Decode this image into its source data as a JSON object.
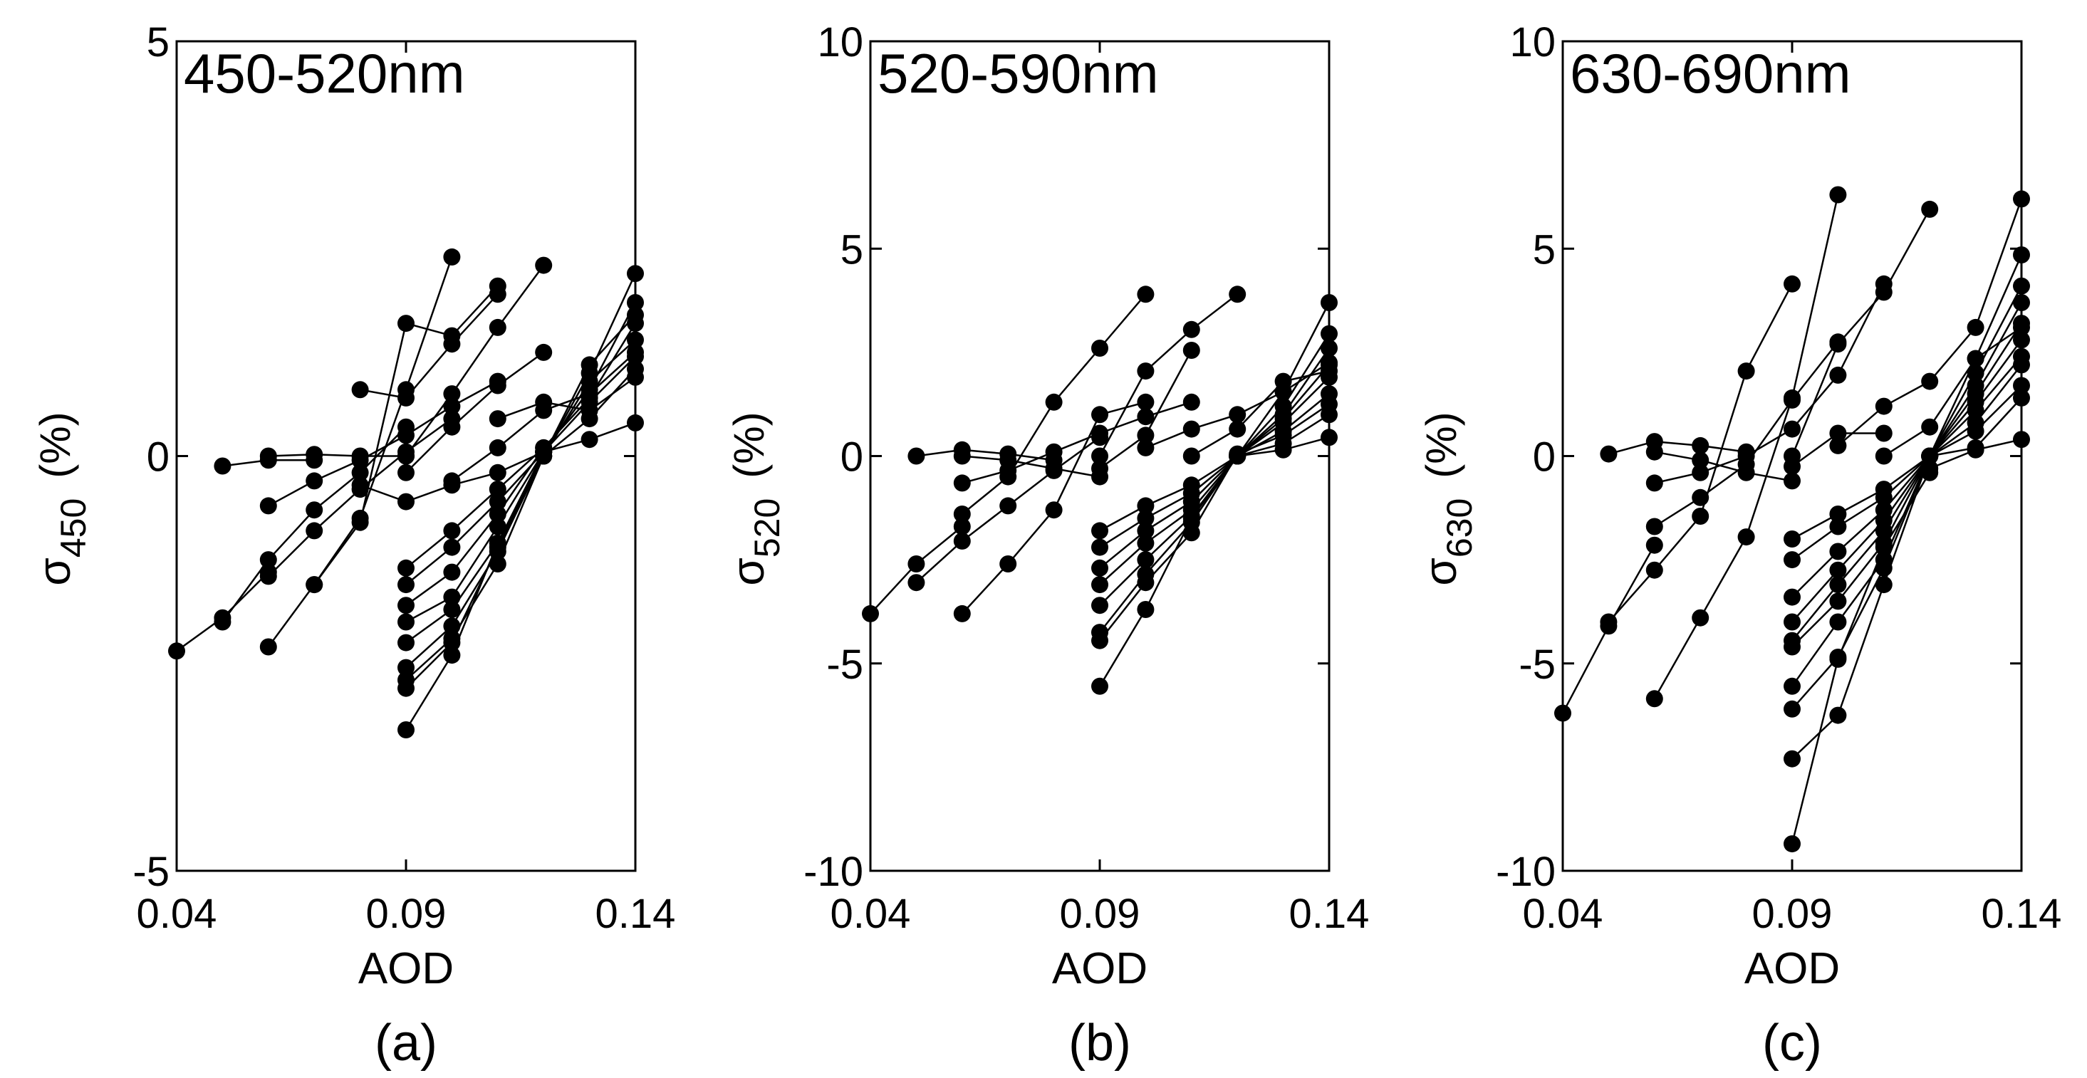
{
  "chart_data": [
    {
      "type": "line",
      "panel_label": "(a)",
      "title": "450-520nm",
      "xlabel": "AOD",
      "ylabel": {
        "symbol": "σ",
        "subscript": "450",
        "unit": "(%)"
      },
      "xlim": [
        0.04,
        0.14
      ],
      "ylim": [
        -5,
        5
      ],
      "xticks": [
        {
          "value": 0.04,
          "label": "0.04"
        },
        {
          "value": 0.09,
          "label": "0.09"
        },
        {
          "value": 0.14,
          "label": "0.14"
        }
      ],
      "yticks": [
        {
          "value": -5,
          "label": "-5"
        },
        {
          "value": 0,
          "label": "0"
        },
        {
          "value": 5,
          "label": "5"
        }
      ],
      "grid": false,
      "series": [
        {
          "x": [
            0.04,
            0.05,
            0.06
          ],
          "y": [
            -2.35,
            -1.95,
            -1.4
          ]
        },
        {
          "x": [
            0.05,
            0.06,
            0.07,
            0.08,
            0.09
          ],
          "y": [
            -2.0,
            -1.25,
            -0.65,
            -0.2,
            0.35
          ]
        },
        {
          "x": [
            0.06,
            0.07,
            0.08,
            0.09,
            0.1
          ],
          "y": [
            -1.45,
            -0.9,
            -0.4,
            0.05,
            0.45
          ]
        },
        {
          "x": [
            0.06,
            0.07,
            0.08,
            0.09,
            0.1,
            0.11
          ],
          "y": [
            -0.6,
            -0.3,
            -0.05,
            0.25,
            0.6,
            0.9
          ]
        },
        {
          "x": [
            0.05,
            0.06,
            0.07
          ],
          "y": [
            -0.12,
            -0.05,
            -0.05
          ]
        },
        {
          "x": [
            0.06,
            0.07,
            0.08,
            0.09
          ],
          "y": [
            0.0,
            0.02,
            0.0,
            0.0
          ]
        },
        {
          "x": [
            0.06,
            0.07,
            0.08,
            0.09,
            0.1
          ],
          "y": [
            -2.3,
            -1.55,
            -0.75,
            0.8,
            2.4
          ]
        },
        {
          "x": [
            0.07,
            0.08,
            0.09,
            0.1,
            0.11
          ],
          "y": [
            -1.55,
            -0.8,
            1.6,
            1.45,
            2.05
          ]
        },
        {
          "x": [
            0.08,
            0.09,
            0.1,
            0.11
          ],
          "y": [
            0.8,
            0.7,
            1.35,
            1.95
          ]
        },
        {
          "x": [
            0.09,
            0.1,
            0.11,
            0.12
          ],
          "y": [
            0.0,
            0.75,
            1.55,
            2.3
          ]
        },
        {
          "x": [
            0.09,
            0.1,
            0.11,
            0.12
          ],
          "y": [
            -0.2,
            0.35,
            0.85,
            1.25
          ]
        },
        {
          "x": [
            0.08,
            0.09,
            0.1,
            0.11,
            0.12
          ],
          "y": [
            -0.35,
            -0.55,
            -0.35,
            -0.2,
            0.05
          ]
        },
        {
          "x": [
            0.09,
            0.1,
            0.11,
            0.12
          ],
          "y": [
            -1.35,
            -0.9,
            -0.4,
            0.1
          ]
        },
        {
          "x": [
            0.09,
            0.1,
            0.11,
            0.12
          ],
          "y": [
            -1.55,
            -1.1,
            -0.55,
            0.05
          ]
        },
        {
          "x": [
            0.09,
            0.1,
            0.11,
            0.12,
            0.13,
            0.14
          ],
          "y": [
            -1.8,
            -1.4,
            -0.7,
            0.1,
            0.7,
            1.6
          ]
        },
        {
          "x": [
            0.09,
            0.1,
            0.11,
            0.12,
            0.13,
            0.14
          ],
          "y": [
            -2.0,
            -1.7,
            -0.85,
            0.05,
            0.8,
            1.85
          ]
        },
        {
          "x": [
            0.09,
            0.1,
            0.11,
            0.12,
            0.13,
            0.14
          ],
          "y": [
            -2.25,
            -1.85,
            -1.05,
            0.0,
            1.0,
            2.2
          ]
        },
        {
          "x": [
            0.09,
            0.1,
            0.11,
            0.12,
            0.13,
            0.14
          ],
          "y": [
            -2.55,
            -2.05,
            -1.15,
            0.0,
            1.1,
            1.7
          ]
        },
        {
          "x": [
            0.09,
            0.1,
            0.11,
            0.12,
            0.13,
            0.14
          ],
          "y": [
            -2.7,
            -2.2,
            -1.3,
            0.0,
            0.9,
            1.4
          ]
        },
        {
          "x": [
            0.09,
            0.1,
            0.11,
            0.12,
            0.13,
            0.14
          ],
          "y": [
            -3.3,
            -2.4,
            -1.05,
            0.05,
            0.65,
            1.2
          ]
        },
        {
          "x": [
            0.09,
            0.1,
            0.11,
            0.12,
            0.13,
            0.14
          ],
          "y": [
            -2.8,
            -2.25,
            -1.1,
            0.0,
            0.45,
            1.05
          ]
        },
        {
          "x": [
            0.1,
            0.11,
            0.12,
            0.13,
            0.14
          ],
          "y": [
            -0.3,
            0.1,
            0.55,
            0.75,
            1.25
          ]
        },
        {
          "x": [
            0.11,
            0.12,
            0.13,
            0.14
          ],
          "y": [
            0.45,
            0.65,
            0.55,
            0.95
          ]
        },
        {
          "x": [
            0.12,
            0.13,
            0.14
          ],
          "y": [
            0.05,
            0.2,
            0.4
          ]
        }
      ]
    },
    {
      "type": "line",
      "panel_label": "(b)",
      "title": "520-590nm",
      "xlabel": "AOD",
      "ylabel": {
        "symbol": "σ",
        "subscript": "520",
        "unit": "(%)"
      },
      "xlim": [
        0.04,
        0.14
      ],
      "ylim": [
        -10,
        10
      ],
      "xticks": [
        {
          "value": 0.04,
          "label": "0.04"
        },
        {
          "value": 0.09,
          "label": "0.09"
        },
        {
          "value": 0.14,
          "label": "0.14"
        }
      ],
      "yticks": [
        {
          "value": -10,
          "label": "-10"
        },
        {
          "value": -5,
          "label": "-5"
        },
        {
          "value": 0,
          "label": "0"
        },
        {
          "value": 5,
          "label": "5"
        },
        {
          "value": 10,
          "label": "10"
        }
      ],
      "grid": false,
      "series": [
        {
          "x": [
            0.04,
            0.05,
            0.06
          ],
          "y": [
            -3.8,
            -2.6,
            -1.7
          ]
        },
        {
          "x": [
            0.05,
            0.06,
            0.07,
            0.08,
            0.09
          ],
          "y": [
            -3.05,
            -2.05,
            -1.2,
            -0.35,
            0.45
          ]
        },
        {
          "x": [
            0.06,
            0.07,
            0.08,
            0.09,
            0.1
          ],
          "y": [
            -3.8,
            -2.6,
            -1.3,
            1.0,
            1.3
          ]
        },
        {
          "x": [
            0.06,
            0.07,
            0.08,
            0.09,
            0.1
          ],
          "y": [
            -1.4,
            -0.5,
            1.3,
            2.6,
            3.9
          ]
        },
        {
          "x": [
            0.06,
            0.07,
            0.08,
            0.09,
            0.1,
            0.11
          ],
          "y": [
            -0.65,
            -0.35,
            0.1,
            0.55,
            0.95,
            1.3
          ]
        },
        {
          "x": [
            0.05,
            0.06,
            0.07,
            0.08
          ],
          "y": [
            0.0,
            0.15,
            0.05,
            -0.1
          ]
        },
        {
          "x": [
            0.06,
            0.07,
            0.08,
            0.09
          ],
          "y": [
            0.0,
            -0.1,
            -0.3,
            -0.5
          ]
        },
        {
          "x": [
            0.09,
            0.1,
            0.11,
            0.12
          ],
          "y": [
            0.0,
            2.05,
            3.05,
            3.9
          ]
        },
        {
          "x": [
            0.09,
            0.1,
            0.11
          ],
          "y": [
            -0.3,
            0.5,
            2.55
          ]
        },
        {
          "x": [
            0.1,
            0.11,
            0.12,
            0.13,
            0.14
          ],
          "y": [
            0.2,
            0.65,
            1.0,
            1.55,
            2.25
          ]
        },
        {
          "x": [
            0.09,
            0.1,
            0.11,
            0.12,
            0.13,
            0.14
          ],
          "y": [
            -1.8,
            -1.2,
            -0.7,
            0.0,
            1.55,
            3.7
          ]
        },
        {
          "x": [
            0.09,
            0.1,
            0.11,
            0.12,
            0.13,
            0.14
          ],
          "y": [
            -2.2,
            -1.5,
            -0.9,
            0.0,
            1.2,
            2.95
          ]
        },
        {
          "x": [
            0.09,
            0.1,
            0.11,
            0.12,
            0.13,
            0.14
          ],
          "y": [
            -2.7,
            -1.8,
            -1.1,
            0.0,
            1.0,
            2.6
          ]
        },
        {
          "x": [
            0.09,
            0.1,
            0.11,
            0.12,
            0.13,
            0.14
          ],
          "y": [
            -3.1,
            -2.1,
            -1.3,
            0.0,
            0.9,
            2.2
          ]
        },
        {
          "x": [
            0.09,
            0.1,
            0.11,
            0.12,
            0.13,
            0.14
          ],
          "y": [
            -3.6,
            -2.5,
            -1.45,
            0.0,
            0.8,
            1.9
          ]
        },
        {
          "x": [
            0.09,
            0.1,
            0.11,
            0.12,
            0.13,
            0.14
          ],
          "y": [
            -4.25,
            -2.85,
            -1.6,
            0.0,
            0.6,
            1.5
          ]
        },
        {
          "x": [
            0.09,
            0.1,
            0.11,
            0.12,
            0.13,
            0.14
          ],
          "y": [
            -4.45,
            -3.05,
            -1.85,
            0.05,
            0.5,
            1.25
          ]
        },
        {
          "x": [
            0.09,
            0.1,
            0.11,
            0.12,
            0.13,
            0.14
          ],
          "y": [
            -5.55,
            -3.7,
            -1.5,
            0.0,
            0.3,
            1.0
          ]
        },
        {
          "x": [
            0.11,
            0.12,
            0.13,
            0.14
          ],
          "y": [
            0.0,
            0.65,
            1.8,
            2.05
          ]
        },
        {
          "x": [
            0.12,
            0.13,
            0.14
          ],
          "y": [
            0.0,
            0.15,
            0.45
          ]
        }
      ]
    },
    {
      "type": "line",
      "panel_label": "(c)",
      "title": "630-690nm",
      "xlabel": "AOD",
      "ylabel": {
        "symbol": "σ",
        "subscript": "630",
        "unit": "(%)"
      },
      "xlim": [
        0.04,
        0.14
      ],
      "ylim": [
        -10,
        10
      ],
      "xticks": [
        {
          "value": 0.04,
          "label": "0.04"
        },
        {
          "value": 0.09,
          "label": "0.09"
        },
        {
          "value": 0.14,
          "label": "0.14"
        }
      ],
      "yticks": [
        {
          "value": -10,
          "label": "-10"
        },
        {
          "value": -5,
          "label": "-5"
        },
        {
          "value": 0,
          "label": "0"
        },
        {
          "value": 5,
          "label": "5"
        },
        {
          "value": 10,
          "label": "10"
        }
      ],
      "grid": false,
      "series": [
        {
          "x": [
            0.04,
            0.05,
            0.06
          ],
          "y": [
            -6.2,
            -4.1,
            -2.15
          ]
        },
        {
          "x": [
            0.05,
            0.06,
            0.07,
            0.08,
            0.09
          ],
          "y": [
            -4.0,
            -2.75,
            -1.45,
            2.05,
            4.15
          ]
        },
        {
          "x": [
            0.06,
            0.07,
            0.08,
            0.09,
            0.1
          ],
          "y": [
            -5.85,
            -3.9,
            -1.95,
            1.4,
            6.3
          ]
        },
        {
          "x": [
            0.06,
            0.07,
            0.08,
            0.09,
            0.1
          ],
          "y": [
            -1.7,
            -1.0,
            -0.2,
            1.35,
            2.75
          ]
        },
        {
          "x": [
            0.06,
            0.07,
            0.08,
            0.09,
            0.1,
            0.11
          ],
          "y": [
            -0.65,
            -0.4,
            0.0,
            0.65,
            1.95,
            4.15
          ]
        },
        {
          "x": [
            0.05,
            0.06,
            0.07,
            0.08
          ],
          "y": [
            0.05,
            0.35,
            0.25,
            0.1
          ]
        },
        {
          "x": [
            0.06,
            0.07,
            0.08,
            0.09
          ],
          "y": [
            0.1,
            -0.1,
            -0.4,
            -0.6
          ]
        },
        {
          "x": [
            0.09,
            0.1,
            0.11,
            0.12
          ],
          "y": [
            0.0,
            2.7,
            3.95,
            5.95
          ]
        },
        {
          "x": [
            0.09,
            0.1,
            0.11
          ],
          "y": [
            -0.25,
            0.55,
            0.55
          ]
        },
        {
          "x": [
            0.1,
            0.11,
            0.12,
            0.13,
            0.14
          ],
          "y": [
            0.25,
            1.2,
            1.8,
            3.1,
            6.2
          ]
        },
        {
          "x": [
            0.09,
            0.1,
            0.11,
            0.12,
            0.13,
            0.14
          ],
          "y": [
            -2.0,
            -1.4,
            -0.8,
            0.0,
            2.35,
            4.85
          ]
        },
        {
          "x": [
            0.09,
            0.1,
            0.11,
            0.12,
            0.13,
            0.14
          ],
          "y": [
            -2.5,
            -1.7,
            -1.0,
            0.0,
            2.0,
            4.1
          ]
        },
        {
          "x": [
            0.09,
            0.1,
            0.11,
            0.12,
            0.13,
            0.14
          ],
          "y": [
            -3.4,
            -2.3,
            -1.3,
            0.0,
            1.7,
            3.7
          ]
        },
        {
          "x": [
            0.09,
            0.1,
            0.11,
            0.12,
            0.13,
            0.14
          ],
          "y": [
            -4.0,
            -2.75,
            -1.55,
            0.0,
            1.5,
            3.2
          ]
        },
        {
          "x": [
            0.09,
            0.1,
            0.11,
            0.12,
            0.13,
            0.14
          ],
          "y": [
            -4.45,
            -3.1,
            -1.8,
            0.0,
            1.3,
            2.8
          ]
        },
        {
          "x": [
            0.09,
            0.1,
            0.11,
            0.12,
            0.13,
            0.14
          ],
          "y": [
            -4.6,
            -3.5,
            -2.1,
            0.0,
            1.1,
            2.4
          ]
        },
        {
          "x": [
            0.09,
            0.1,
            0.11,
            0.12,
            0.13,
            0.14
          ],
          "y": [
            -5.55,
            -4.0,
            -2.5,
            0.0,
            0.8,
            2.2
          ]
        },
        {
          "x": [
            0.09,
            0.1,
            0.11,
            0.12,
            0.13,
            0.14
          ],
          "y": [
            -6.1,
            -4.85,
            -2.7,
            0.0,
            0.6,
            1.7
          ]
        },
        {
          "x": [
            0.09,
            0.1,
            0.11,
            0.12,
            0.13,
            0.14
          ],
          "y": [
            -7.3,
            -6.25,
            -3.1,
            0.0,
            0.2,
            1.4
          ]
        },
        {
          "x": [
            0.09,
            0.1,
            0.11,
            0.12
          ],
          "y": [
            -9.35,
            -4.9,
            -2.2,
            -0.4
          ]
        },
        {
          "x": [
            0.11,
            0.12,
            0.13,
            0.14
          ],
          "y": [
            0.0,
            0.7,
            2.35,
            3.1
          ]
        },
        {
          "x": [
            0.12,
            0.13,
            0.14
          ],
          "y": [
            -0.3,
            0.15,
            0.4
          ]
        }
      ]
    }
  ]
}
